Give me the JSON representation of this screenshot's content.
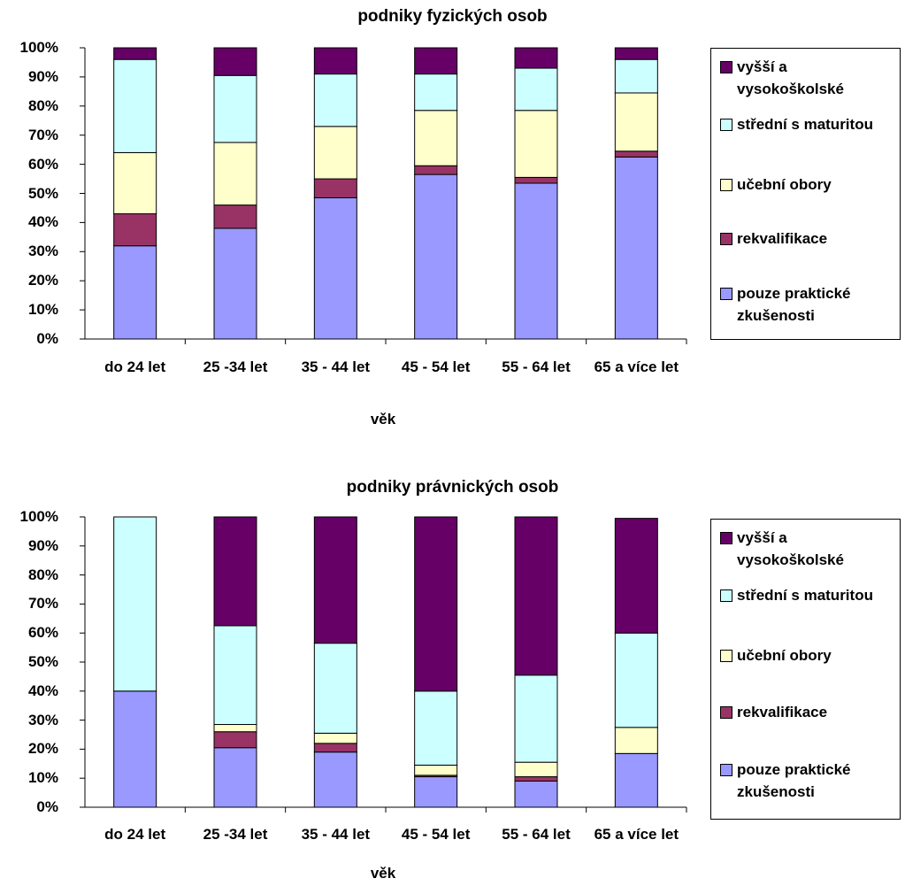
{
  "colors": {
    "pouze_prakticke": "#9999ff",
    "rekvalifikace": "#993366",
    "ucebni_obory": "#ffffcc",
    "stredni_s_maturitou": "#ccffff",
    "vyssi_a_vysokoskolske": "#660066"
  },
  "chart_data": [
    {
      "type": "bar",
      "stacked": true,
      "percent": true,
      "title": "podniky fyzických osob",
      "xlabel": "věk",
      "ylabel": "",
      "ylim": [
        0,
        100
      ],
      "yticks": [
        "0%",
        "10%",
        "20%",
        "30%",
        "40%",
        "50%",
        "60%",
        "70%",
        "80%",
        "90%",
        "100%"
      ],
      "categories": [
        "do 24 let",
        "25 -34 let",
        "35 - 44 let",
        "45 - 54 let",
        "55 - 64 let",
        "65 a více let"
      ],
      "grid": false,
      "legend_position": "right",
      "series": [
        {
          "name": "pouze praktické zkušenosti",
          "color_key": "pouze_prakticke",
          "values": [
            32,
            38,
            48.5,
            56.5,
            53.5,
            62.5
          ]
        },
        {
          "name": "rekvalifikace",
          "color_key": "rekvalifikace",
          "values": [
            11,
            8,
            6.5,
            3,
            2,
            2
          ]
        },
        {
          "name": "učební obory",
          "color_key": "ucebni_obory",
          "values": [
            21,
            21.5,
            18,
            19,
            23,
            20
          ]
        },
        {
          "name": "střední s maturitou",
          "color_key": "stredni_s_maturitou",
          "values": [
            32,
            23,
            18,
            12.5,
            14.5,
            11.5
          ]
        },
        {
          "name": "vyšší a vysokoškolské",
          "color_key": "vyssi_a_vysokoskolske",
          "values": [
            4,
            9.5,
            9,
            9,
            7,
            4
          ]
        }
      ]
    },
    {
      "type": "bar",
      "stacked": true,
      "percent": true,
      "title": "podniky právnických osob",
      "xlabel": "věk",
      "ylabel": "",
      "ylim": [
        0,
        100
      ],
      "yticks": [
        "0%",
        "10%",
        "20%",
        "30%",
        "40%",
        "50%",
        "60%",
        "70%",
        "80%",
        "90%",
        "100%"
      ],
      "categories": [
        "do 24 let",
        "25 -34 let",
        "35 - 44 let",
        "45 - 54 let",
        "55 - 64 let",
        "65 a více let"
      ],
      "grid": false,
      "legend_position": "right",
      "series": [
        {
          "name": "pouze praktické zkušenosti",
          "color_key": "pouze_prakticke",
          "values": [
            40,
            20.5,
            19,
            10.5,
            9,
            18.5
          ]
        },
        {
          "name": "rekvalifikace",
          "color_key": "rekvalifikace",
          "values": [
            0,
            5.5,
            3,
            0.5,
            1.5,
            0
          ]
        },
        {
          "name": "učební obory",
          "color_key": "ucebni_obory",
          "values": [
            0,
            2.5,
            3.5,
            3.5,
            5,
            9
          ]
        },
        {
          "name": "střední s maturitou",
          "color_key": "stredni_s_maturitou",
          "values": [
            60,
            34,
            31,
            25.5,
            30,
            32.5
          ]
        },
        {
          "name": "vyšší a vysokoškolské",
          "color_key": "vyssi_a_vysokoskolske",
          "values": [
            0,
            37.5,
            43.5,
            60,
            54.5,
            39.5
          ]
        }
      ]
    }
  ]
}
